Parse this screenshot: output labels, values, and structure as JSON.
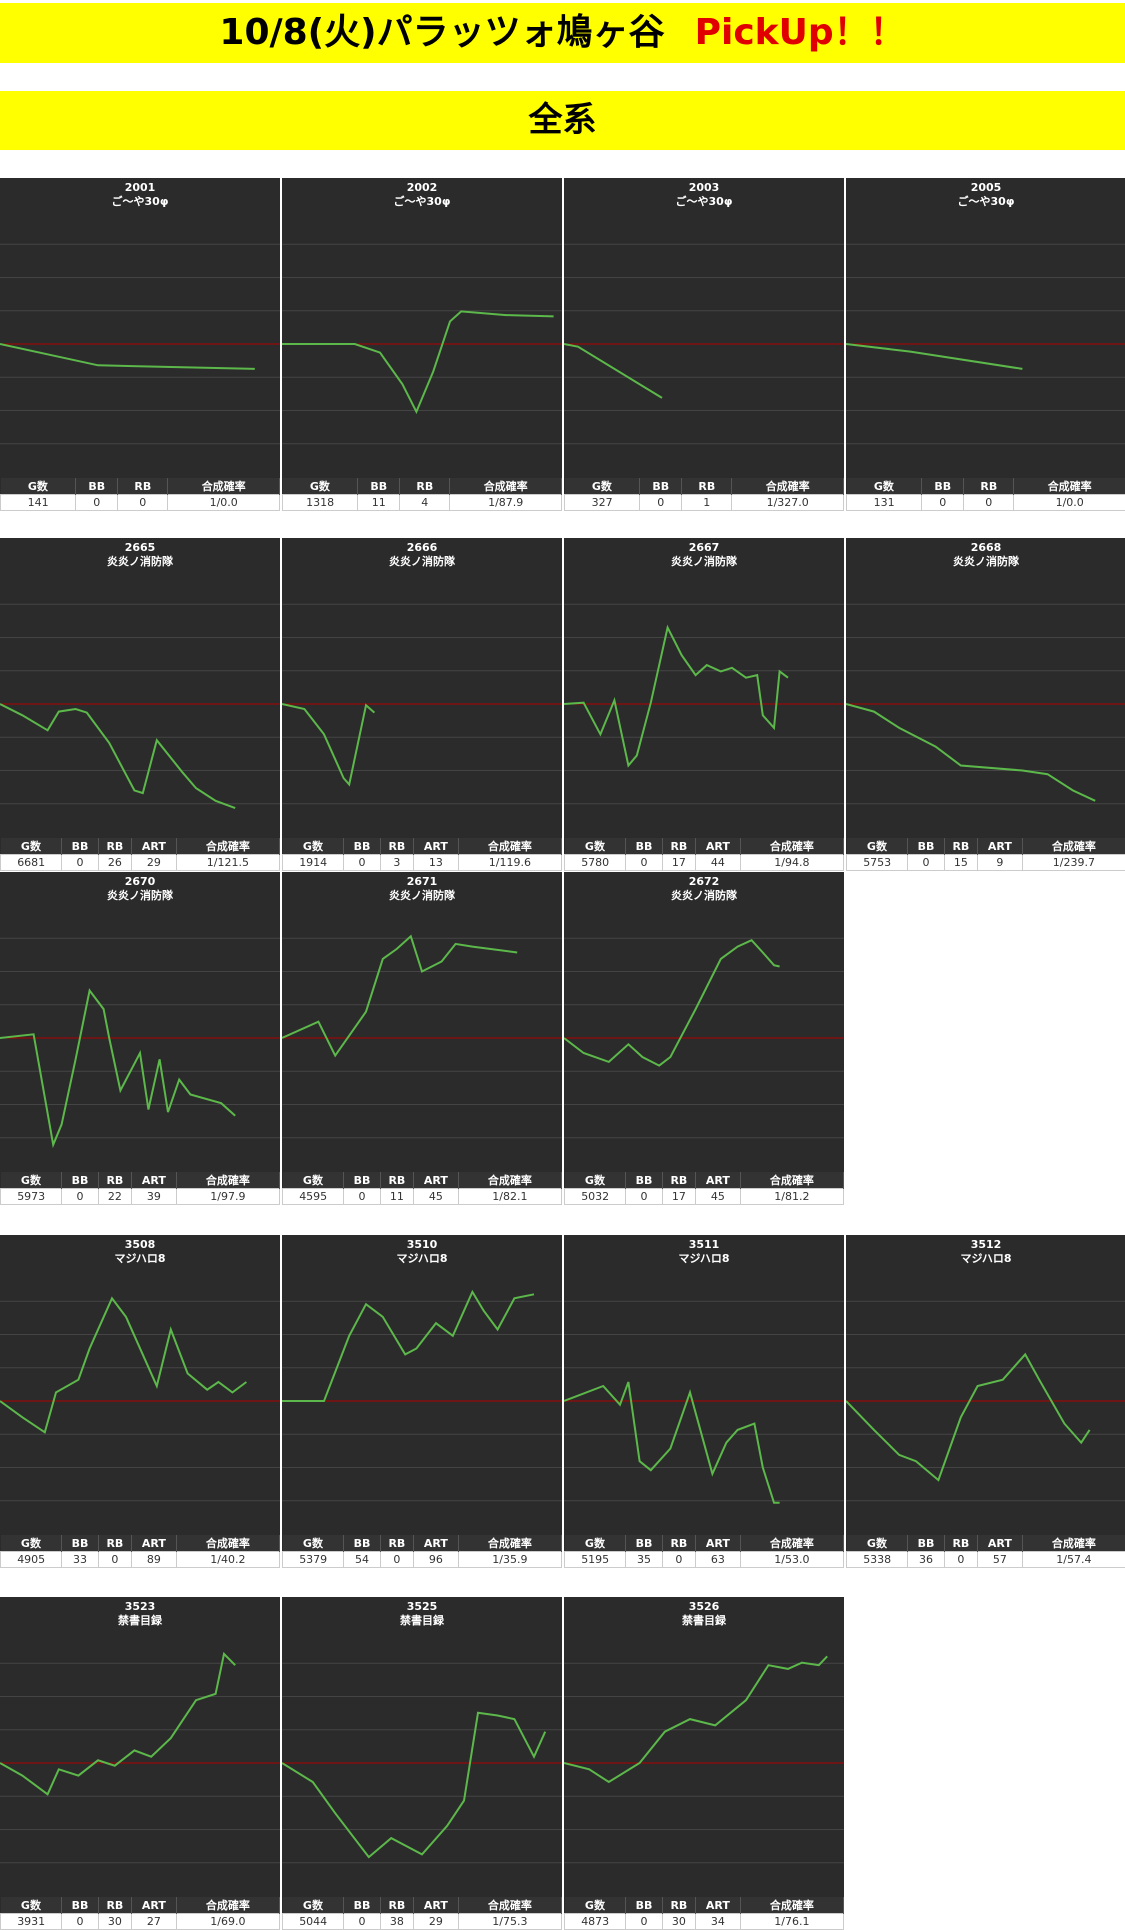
{
  "header": {
    "title": "10/8(火)パラッツォ鳩ヶ谷",
    "highlight": "PickUp！！"
  },
  "section": "全系",
  "chart_data": [
    {
      "type": "line",
      "title": "2001",
      "subtitle": "ご～や30φ",
      "x": [
        0,
        35,
        91
      ],
      "values": [
        0,
        -640,
        -750
      ],
      "xlim": [
        0,
        100
      ],
      "ylim": [
        -4000,
        4000
      ],
      "yticks": [
        -3000,
        -2000,
        -1000,
        0,
        1000,
        2000,
        3000
      ],
      "grid": true,
      "color": "#5cb84a",
      "zero_color": "#b00000",
      "table": {
        "headers": [
          "G数",
          "BB",
          "RB",
          "合成確率"
        ],
        "row": [
          141,
          0,
          0,
          "1/0.0"
        ]
      }
    },
    {
      "type": "line",
      "title": "2002",
      "subtitle": "ご～や30φ",
      "x": [
        0,
        26,
        35,
        43,
        48,
        54,
        60,
        64,
        80,
        97
      ],
      "values": [
        0,
        0,
        -260,
        -1210,
        -2040,
        -830,
        680,
        980,
        870,
        830
      ],
      "xlim": [
        0,
        100
      ],
      "ylim": [
        -4000,
        4000
      ],
      "yticks": [
        -3000,
        -2000,
        -1000,
        0,
        1000,
        2000,
        3000
      ],
      "grid": true,
      "color": "#5cb84a",
      "zero_color": "#b00000",
      "table": {
        "headers": [
          "G数",
          "BB",
          "RB",
          "合成確率"
        ],
        "row": [
          1318,
          11,
          4,
          "1/87.9"
        ]
      }
    },
    {
      "type": "line",
      "title": "2003",
      "subtitle": "ご～や30φ",
      "x": [
        0,
        5,
        35
      ],
      "values": [
        0,
        -80,
        -1620
      ],
      "xlim": [
        0,
        100
      ],
      "ylim": [
        -4000,
        4000
      ],
      "yticks": [
        -3000,
        -2000,
        -1000,
        0,
        1000,
        2000,
        3000
      ],
      "grid": true,
      "color": "#5cb84a",
      "zero_color": "#b00000",
      "table": {
        "headers": [
          "G数",
          "BB",
          "RB",
          "合成確率"
        ],
        "row": [
          327,
          0,
          1,
          "1/327.0"
        ]
      }
    },
    {
      "type": "line",
      "title": "2005",
      "subtitle": "ご～や30φ",
      "x": [
        0,
        23,
        63
      ],
      "values": [
        0,
        -230,
        -750
      ],
      "xlim": [
        0,
        100
      ],
      "ylim": [
        -4000,
        4000
      ],
      "yticks": [
        -3000,
        -2000,
        -1000,
        0,
        1000,
        2000,
        3000
      ],
      "grid": true,
      "color": "#5cb84a",
      "zero_color": "#b00000",
      "table": {
        "headers": [
          "G数",
          "BB",
          "RB",
          "合成確率"
        ],
        "row": [
          131,
          0,
          0,
          "1/0.0"
        ]
      }
    },
    {
      "type": "line",
      "title": "2665",
      "subtitle": "炎炎ノ消防隊",
      "x": [
        0,
        8,
        17,
        21,
        27,
        31,
        39,
        48,
        51,
        56,
        65,
        70,
        77,
        84
      ],
      "values": [
        0,
        -340,
        -790,
        -230,
        -150,
        -260,
        -1170,
        -2600,
        -2680,
        -1090,
        -2040,
        -2530,
        -2910,
        -3130
      ],
      "xlim": [
        0,
        100
      ],
      "ylim": [
        -4000,
        4000
      ],
      "yticks": [
        -3000,
        -2000,
        -1000,
        0,
        1000,
        2000,
        3000
      ],
      "grid": true,
      "color": "#5cb84a",
      "zero_color": "#b00000",
      "table": {
        "headers": [
          "G数",
          "BB",
          "RB",
          "ART",
          "合成確率"
        ],
        "row": [
          6681,
          0,
          26,
          29,
          "1/121.5"
        ]
      }
    },
    {
      "type": "line",
      "title": "2666",
      "subtitle": "炎炎ノ消防隊",
      "x": [
        0,
        8,
        15,
        22,
        24,
        30,
        33
      ],
      "values": [
        0,
        -150,
        -910,
        -2230,
        -2420,
        -40,
        -260
      ],
      "xlim": [
        0,
        100
      ],
      "ylim": [
        -4000,
        4000
      ],
      "yticks": [
        -3000,
        -2000,
        -1000,
        0,
        1000,
        2000,
        3000
      ],
      "grid": true,
      "color": "#5cb84a",
      "zero_color": "#b00000",
      "table": {
        "headers": [
          "G数",
          "BB",
          "RB",
          "ART",
          "合成確率"
        ],
        "row": [
          1914,
          0,
          3,
          13,
          "1/119.6"
        ]
      }
    },
    {
      "type": "line",
      "title": "2667",
      "subtitle": "炎炎ノ消防隊",
      "x": [
        0,
        7,
        13,
        18,
        23,
        26,
        31,
        37,
        42,
        47,
        51,
        56,
        60,
        65,
        69,
        71,
        75,
        77,
        80
      ],
      "values": [
        0,
        40,
        -910,
        110,
        -1850,
        -1550,
        40,
        2300,
        1470,
        870,
        1170,
        980,
        1090,
        790,
        870,
        -340,
        -720,
        980,
        790
      ],
      "xlim": [
        0,
        100
      ],
      "ylim": [
        -4000,
        4000
      ],
      "yticks": [
        -3000,
        -2000,
        -1000,
        0,
        1000,
        2000,
        3000
      ],
      "grid": true,
      "color": "#5cb84a",
      "zero_color": "#b00000",
      "table": {
        "headers": [
          "G数",
          "BB",
          "RB",
          "ART",
          "合成確率"
        ],
        "row": [
          5780,
          0,
          17,
          44,
          "1/94.8"
        ]
      }
    },
    {
      "type": "line",
      "title": "2668",
      "subtitle": "炎炎ノ消防隊",
      "x": [
        0,
        10,
        19,
        32,
        41,
        63,
        72,
        81,
        89
      ],
      "values": [
        0,
        -230,
        -720,
        -1280,
        -1850,
        -2000,
        -2110,
        -2600,
        -2910
      ],
      "xlim": [
        0,
        100
      ],
      "ylim": [
        -4000,
        4000
      ],
      "yticks": [
        -3000,
        -2000,
        -1000,
        0,
        1000,
        2000,
        3000
      ],
      "grid": true,
      "color": "#5cb84a",
      "zero_color": "#b00000",
      "table": {
        "headers": [
          "G数",
          "BB",
          "RB",
          "ART",
          "合成確率"
        ],
        "row": [
          5753,
          0,
          15,
          9,
          "1/239.7"
        ]
      }
    },
    {
      "type": "line",
      "title": "2670",
      "subtitle": "炎炎ノ消防隊",
      "x": [
        0,
        12,
        19,
        22,
        27,
        32,
        37,
        39,
        43,
        50,
        53,
        57,
        60,
        64,
        68,
        79,
        84
      ],
      "values": [
        0,
        110,
        -3210,
        -2600,
        -640,
        1430,
        870,
        0,
        -1580,
        -450,
        -2150,
        -640,
        -2230,
        -1250,
        -1700,
        -1960,
        -2340
      ],
      "xlim": [
        0,
        100
      ],
      "ylim": [
        -4000,
        4000
      ],
      "yticks": [
        -3000,
        -2000,
        -1000,
        0,
        1000,
        2000,
        3000
      ],
      "grid": true,
      "color": "#5cb84a",
      "zero_color": "#b00000",
      "table": {
        "headers": [
          "G数",
          "BB",
          "RB",
          "ART",
          "合成確率"
        ],
        "row": [
          5973,
          0,
          22,
          39,
          "1/97.9"
        ]
      }
    },
    {
      "type": "line",
      "title": "2671",
      "subtitle": "炎炎ノ消防隊",
      "x": [
        0,
        13,
        19,
        30,
        36,
        41,
        46,
        50,
        57,
        62,
        68,
        84
      ],
      "values": [
        0,
        490,
        -530,
        790,
        2380,
        2680,
        3060,
        2000,
        2300,
        2830,
        2750,
        2570
      ],
      "xlim": [
        0,
        100
      ],
      "ylim": [
        -4000,
        4000
      ],
      "yticks": [
        -3000,
        -2000,
        -1000,
        0,
        1000,
        2000,
        3000
      ],
      "grid": true,
      "color": "#5cb84a",
      "zero_color": "#b00000",
      "table": {
        "headers": [
          "G数",
          "BB",
          "RB",
          "ART",
          "合成確率"
        ],
        "row": [
          4595,
          0,
          11,
          45,
          "1/82.1"
        ]
      }
    },
    {
      "type": "line",
      "title": "2672",
      "subtitle": "炎炎ノ消防隊",
      "x": [
        0,
        7,
        16,
        23,
        28,
        34,
        38,
        47,
        56,
        62,
        67,
        71,
        75,
        77
      ],
      "values": [
        0,
        -450,
        -720,
        -190,
        -570,
        -830,
        -570,
        870,
        2380,
        2750,
        2940,
        2570,
        2190,
        2150
      ],
      "xlim": [
        0,
        100
      ],
      "ylim": [
        -4000,
        4000
      ],
      "yticks": [
        -3000,
        -2000,
        -1000,
        0,
        1000,
        2000,
        3000
      ],
      "grid": true,
      "color": "#5cb84a",
      "zero_color": "#b00000",
      "table": {
        "headers": [
          "G数",
          "BB",
          "RB",
          "ART",
          "合成確率"
        ],
        "row": [
          5032,
          0,
          17,
          45,
          "1/81.2"
        ]
      }
    },
    {
      "type": "line",
      "title": "3508",
      "subtitle": "マジハロ8",
      "x": [
        0,
        8,
        16,
        20,
        28,
        32,
        40,
        45,
        56,
        61,
        67,
        74,
        78,
        83,
        88
      ],
      "values": [
        0,
        -490,
        -940,
        260,
        640,
        1580,
        3090,
        2530,
        450,
        2150,
        830,
        340,
        570,
        260,
        570
      ],
      "xlim": [
        0,
        100
      ],
      "ylim": [
        -4000,
        4000
      ],
      "yticks": [
        -3000,
        -2000,
        -1000,
        0,
        1000,
        2000,
        3000
      ],
      "grid": true,
      "color": "#5cb84a",
      "zero_color": "#b00000",
      "table": {
        "headers": [
          "G数",
          "BB",
          "RB",
          "ART",
          "合成確率"
        ],
        "row": [
          4905,
          33,
          0,
          89,
          "1/40.2"
        ]
      }
    },
    {
      "type": "line",
      "title": "3510",
      "subtitle": "マジハロ8",
      "x": [
        0,
        15,
        24,
        30,
        36,
        44,
        48,
        55,
        61,
        68,
        72,
        77,
        83,
        90
      ],
      "values": [
        0,
        0,
        1960,
        2910,
        2530,
        1400,
        1580,
        2340,
        1960,
        3280,
        2720,
        2150,
        3090,
        3210
      ],
      "xlim": [
        0,
        100
      ],
      "ylim": [
        -4000,
        4000
      ],
      "yticks": [
        -3000,
        -2000,
        -1000,
        0,
        1000,
        2000,
        3000
      ],
      "grid": true,
      "color": "#5cb84a",
      "zero_color": "#b00000",
      "table": {
        "headers": [
          "G数",
          "BB",
          "RB",
          "ART",
          "合成確率"
        ],
        "row": [
          5379,
          54,
          0,
          96,
          "1/35.9"
        ]
      }
    },
    {
      "type": "line",
      "title": "3511",
      "subtitle": "マジハロ8",
      "x": [
        0,
        14,
        20,
        23,
        27,
        31,
        38,
        45,
        53,
        58,
        62,
        68,
        71,
        75,
        77
      ],
      "values": [
        0,
        450,
        -110,
        570,
        -1810,
        -2080,
        -1430,
        260,
        -2190,
        -1250,
        -870,
        -680,
        -2000,
        -3060,
        -3060
      ],
      "xlim": [
        0,
        100
      ],
      "ylim": [
        -4000,
        4000
      ],
      "yticks": [
        -3000,
        -2000,
        -1000,
        0,
        1000,
        2000,
        3000
      ],
      "grid": true,
      "color": "#5cb84a",
      "zero_color": "#b00000",
      "table": {
        "headers": [
          "G数",
          "BB",
          "RB",
          "ART",
          "合成確率"
        ],
        "row": [
          5195,
          35,
          0,
          63,
          "1/53.0"
        ]
      }
    },
    {
      "type": "line",
      "title": "3512",
      "subtitle": "マジハロ8",
      "x": [
        0,
        10,
        19,
        25,
        33,
        41,
        47,
        56,
        64,
        69,
        78,
        84,
        87
      ],
      "values": [
        0,
        -870,
        -1620,
        -1810,
        -2380,
        -490,
        450,
        640,
        1400,
        640,
        -680,
        -1250,
        -870
      ],
      "xlim": [
        0,
        100
      ],
      "ylim": [
        -4000,
        4000
      ],
      "yticks": [
        -3000,
        -2000,
        -1000,
        0,
        1000,
        2000,
        3000
      ],
      "grid": true,
      "color": "#5cb84a",
      "zero_color": "#b00000",
      "table": {
        "headers": [
          "G数",
          "BB",
          "RB",
          "ART",
          "合成確率"
        ],
        "row": [
          5338,
          36,
          0,
          57,
          "1/57.4"
        ]
      }
    },
    {
      "type": "line",
      "title": "3523",
      "subtitle": "禁書目録",
      "x": [
        0,
        8,
        17,
        21,
        28,
        35,
        41,
        48,
        54,
        61,
        70,
        77,
        80,
        84
      ],
      "values": [
        0,
        -380,
        -940,
        -190,
        -380,
        80,
        -80,
        380,
        190,
        750,
        1890,
        2080,
        3280,
        2940
      ],
      "xlim": [
        0,
        100
      ],
      "ylim": [
        -4000,
        4000
      ],
      "yticks": [
        -3000,
        -2000,
        -1000,
        0,
        1000,
        2000,
        3000
      ],
      "grid": true,
      "color": "#5cb84a",
      "zero_color": "#b00000",
      "table": {
        "headers": [
          "G数",
          "BB",
          "RB",
          "ART",
          "合成確率"
        ],
        "row": [
          3931,
          0,
          30,
          27,
          "1/69.0"
        ]
      }
    },
    {
      "type": "line",
      "title": "3525",
      "subtitle": "禁書目録",
      "x": [
        0,
        11,
        19,
        31,
        39,
        50,
        59,
        65,
        70,
        77,
        83,
        90,
        94
      ],
      "values": [
        0,
        -570,
        -1510,
        -2830,
        -2260,
        -2750,
        -1890,
        -1130,
        1510,
        1430,
        1320,
        190,
        940
      ],
      "xlim": [
        0,
        100
      ],
      "ylim": [
        -4000,
        4000
      ],
      "yticks": [
        -3000,
        -2000,
        -1000,
        0,
        1000,
        2000,
        3000
      ],
      "grid": true,
      "color": "#5cb84a",
      "zero_color": "#b00000",
      "table": {
        "headers": [
          "G数",
          "BB",
          "RB",
          "ART",
          "合成確率"
        ],
        "row": [
          5044,
          0,
          38,
          29,
          "1/75.3"
        ]
      }
    },
    {
      "type": "line",
      "title": "3526",
      "subtitle": "禁書目録",
      "x": [
        0,
        9,
        16,
        27,
        36,
        45,
        54,
        65,
        73,
        80,
        85,
        91,
        94
      ],
      "values": [
        0,
        -190,
        -570,
        0,
        940,
        1320,
        1130,
        1890,
        2940,
        2830,
        3020,
        2940,
        3210
      ],
      "xlim": [
        0,
        100
      ],
      "ylim": [
        -4000,
        4000
      ],
      "yticks": [
        -3000,
        -2000,
        -1000,
        0,
        1000,
        2000,
        3000
      ],
      "grid": true,
      "color": "#5cb84a",
      "zero_color": "#b00000",
      "table": {
        "headers": [
          "G数",
          "BB",
          "RB",
          "ART",
          "合成確率"
        ],
        "row": [
          4873,
          0,
          30,
          34,
          "1/76.1"
        ]
      }
    }
  ]
}
